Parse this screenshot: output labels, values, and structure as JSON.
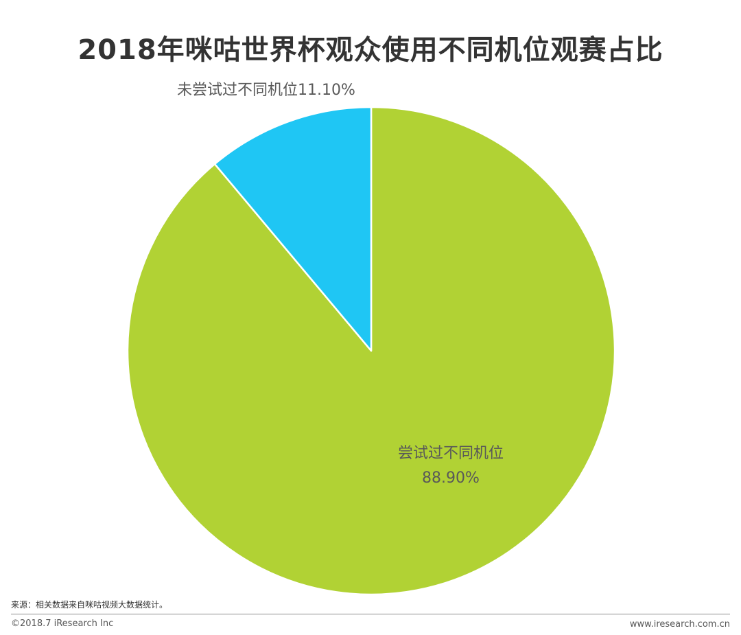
{
  "chart_data": {
    "type": "pie",
    "title": "2018年咪咕世界杯观众使用不同机位观赛占比",
    "slices": [
      {
        "label": "尝试过不同机位",
        "value": 88.9,
        "display": "88.90%",
        "color": "#b1d234"
      },
      {
        "label": "未尝试过不同机位",
        "value": 11.1,
        "display": "11.10%",
        "color": "#1fc6f4"
      }
    ],
    "start_angle_deg": 0,
    "direction": "clockwise",
    "slice_border_color": "#ffffff"
  },
  "footer": {
    "source": "来源：相关数据来自咪咕视频大数据统计。",
    "copyright": "©2018.7 iResearch Inc",
    "website": "www.iresearch.com.cn"
  }
}
